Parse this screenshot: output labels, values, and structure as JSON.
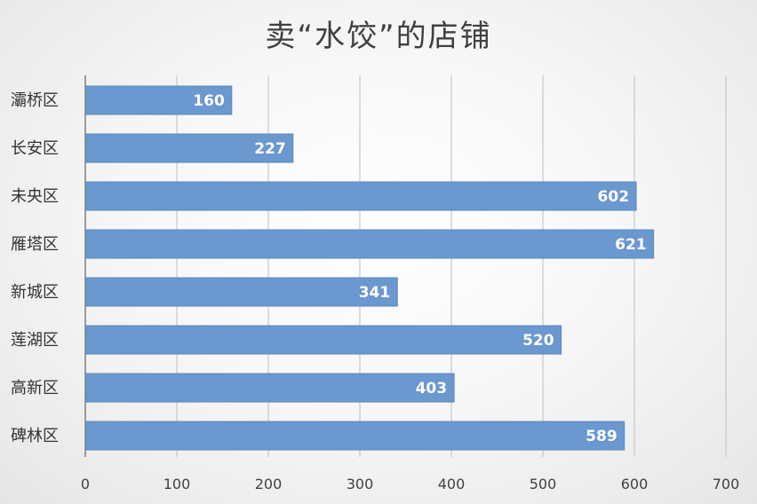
{
  "chart_data": {
    "type": "bar",
    "orientation": "horizontal",
    "title": "卖“水饺”的店铺",
    "categories": [
      "灞桥区",
      "长安区",
      "未央区",
      "雁塔区",
      "新城区",
      "莲湖区",
      "高新区",
      "碑林区"
    ],
    "values": [
      160,
      227,
      602,
      621,
      341,
      520,
      403,
      589
    ],
    "xlim": [
      0,
      700
    ],
    "xticks": [
      0,
      100,
      200,
      300,
      400,
      500,
      600,
      700
    ],
    "grid": true,
    "legend": "none",
    "data_labels": true
  },
  "colors": {
    "bar": "#6a98cf",
    "bar_edge": "#5b87bd",
    "grid": "#c8c8c8",
    "axis": "#7f7f7f"
  }
}
